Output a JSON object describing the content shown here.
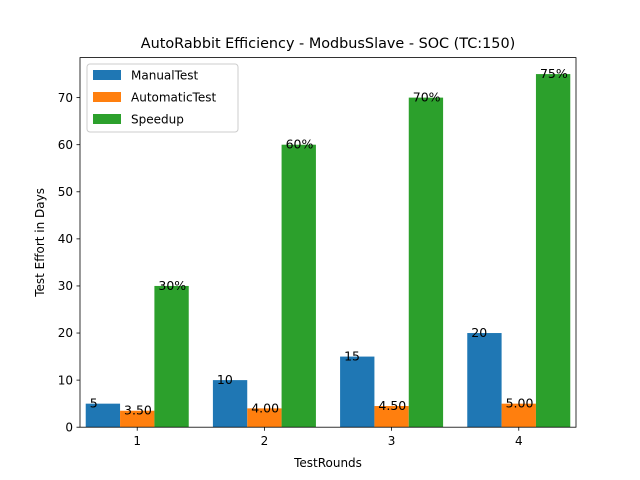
{
  "chart_data": {
    "type": "bar",
    "title": "AutoRabbit Efficiency - ModbusSlave - SOC (TC:150)",
    "xlabel": "TestRounds",
    "ylabel": "Test Effort in Days",
    "categories": [
      "1",
      "2",
      "3",
      "4"
    ],
    "ylim": [
      0,
      78.5
    ],
    "yticks": [
      0,
      10,
      20,
      30,
      40,
      50,
      60,
      70
    ],
    "grid": false,
    "legend_position": "top-left",
    "series": [
      {
        "name": "ManualTest",
        "color": "#1f77b4",
        "values": [
          5,
          10,
          15,
          20
        ],
        "labels": [
          "5",
          "10",
          "15",
          "20"
        ]
      },
      {
        "name": "AutomaticTest",
        "color": "#ff7f0e",
        "values": [
          3.5,
          4.0,
          4.5,
          5.0
        ],
        "labels": [
          "3.50",
          "4.00",
          "4.50",
          "5.00"
        ]
      },
      {
        "name": "Speedup",
        "color": "#2ca02c",
        "values": [
          30,
          60,
          70,
          75
        ],
        "labels": [
          "30%",
          "60%",
          "70%",
          "75%"
        ]
      }
    ]
  }
}
